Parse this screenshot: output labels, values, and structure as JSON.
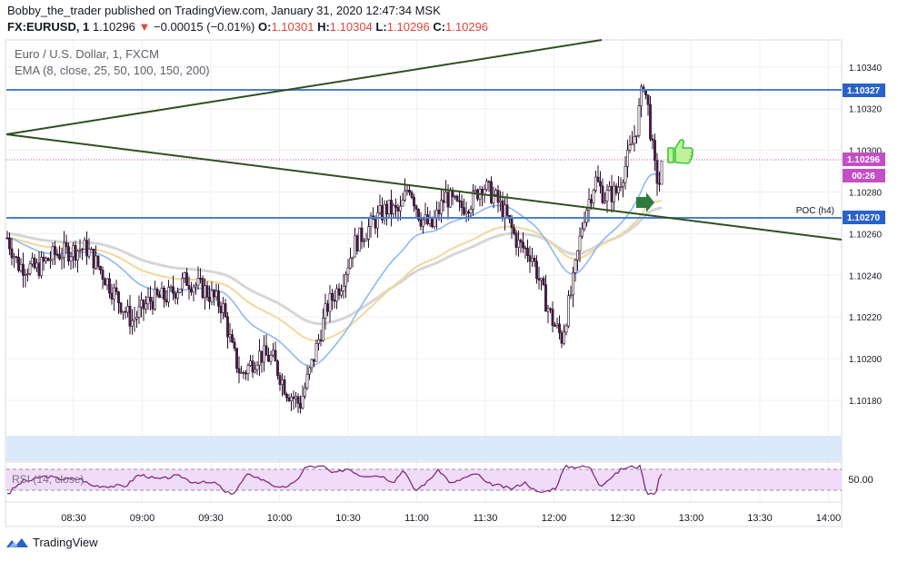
{
  "publish_line": {
    "author": "Bobby_the_trader",
    "text": "published on TradingView.com, January 31, 2020 12:47:34 MSK"
  },
  "symbol_line": {
    "symbol": "FX:EURUSD, 1",
    "price": "1.10296",
    "arrow": "▼",
    "change": "−0.00015 (−0.01%)",
    "o_label": "O:",
    "o": "1.10301",
    "h_label": "H:",
    "h": "1.10304",
    "l_label": "L:",
    "l": "1.10296",
    "c_label": "C:",
    "c": "1.10296"
  },
  "chart_title": "Euro / U.S. Dollar, 1, FXCM",
  "ema_legend": "EMA (8, close, 25, 50, 100, 150, 200)",
  "rsi_legend": "RSI (14, close)",
  "footer_brand": "TradingView",
  "colors": {
    "candle_up": "#ffffff",
    "candle_down": "#4a1d4a",
    "hline": "#4a7fd4",
    "trendline": "#2f4f1f",
    "ema_fast": "#8fb8f2",
    "ema_mid": "#f3d79a",
    "ema_slow": "#d6d6d6",
    "price_tag": "#c44fc4",
    "rsi_band": "#f0dcf8",
    "rsi_line": "#7b1f7b",
    "zone": "#dce9fb"
  },
  "chart_data": {
    "type": "candlestick",
    "price_axis": {
      "ticks": [
        "1.10340",
        "1.10320",
        "1.10300",
        "1.10280",
        "1.10260",
        "1.10240",
        "1.10220",
        "1.10200",
        "1.10180"
      ],
      "range": [
        1.10163,
        1.10353
      ]
    },
    "time_axis": {
      "ticks": [
        "08:30",
        "09:00",
        "09:30",
        "10:00",
        "10:30",
        "11:00",
        "11:30",
        "12:00",
        "12:30",
        "13:00",
        "13:30",
        "14:00"
      ]
    },
    "price_labels": [
      {
        "text": "1.10327",
        "value": 1.10327
      },
      {
        "text": "1.10296",
        "value": 1.10296
      },
      {
        "text": "00:26",
        "value": 1.10286
      },
      {
        "text": "1.10270",
        "value": 1.1027
      }
    ],
    "horizontal_lines": [
      1.10327,
      1.1027
    ],
    "current_price": 1.10296,
    "annotations": [
      {
        "text": "POC (h4)",
        "value": 1.1027
      }
    ],
    "rsi": {
      "ticks": [
        "50.00"
      ],
      "upper": 70,
      "lower": 30
    },
    "grid": true
  }
}
